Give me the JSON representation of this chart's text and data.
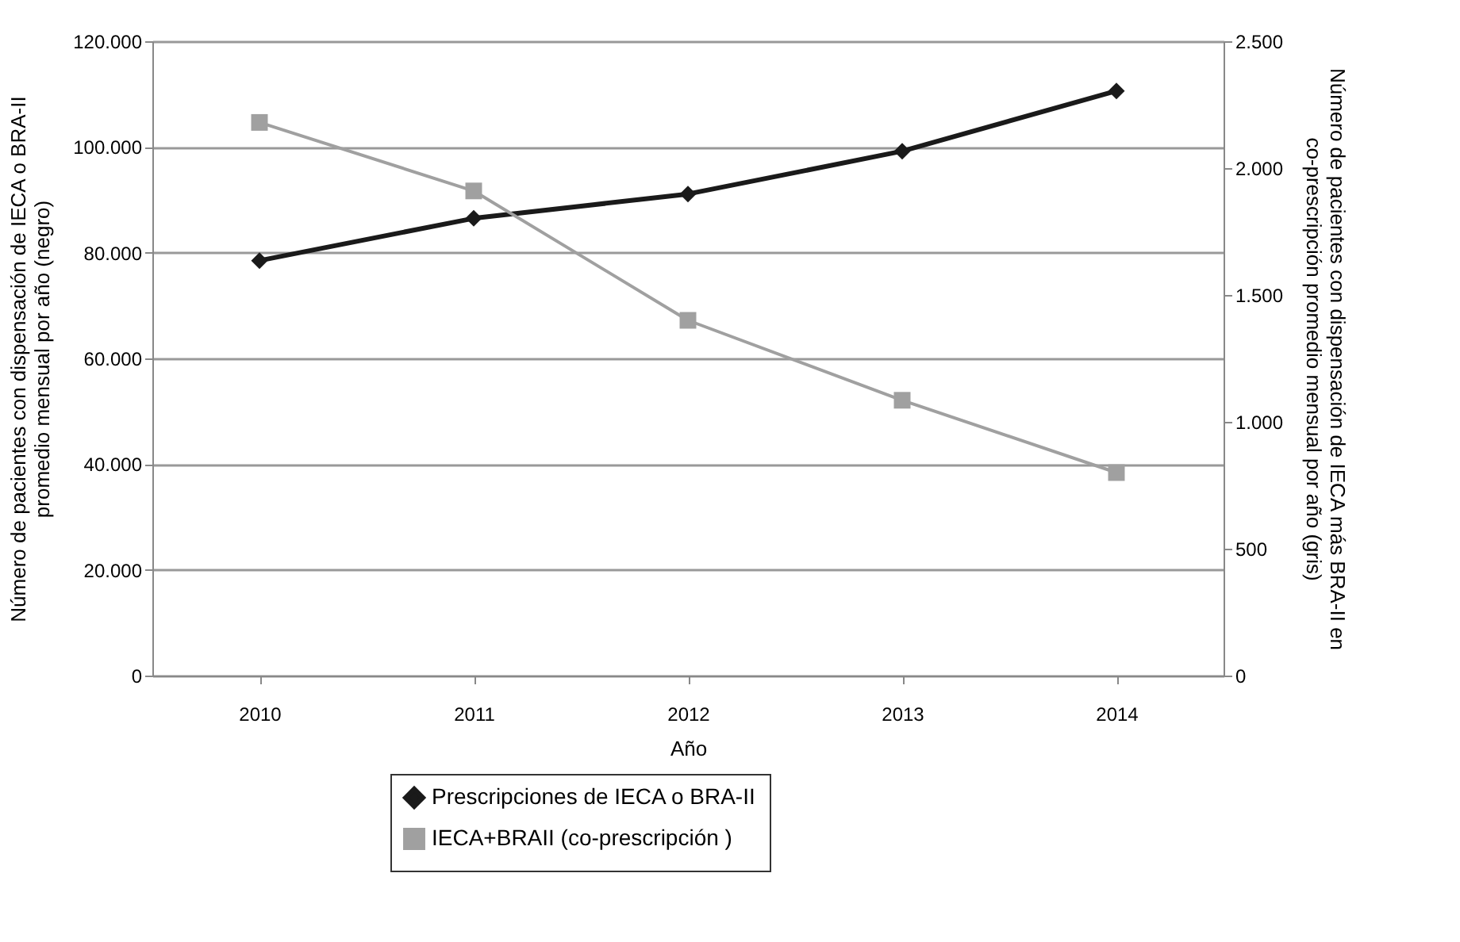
{
  "chart_data": {
    "type": "line",
    "categories": [
      "2010",
      "2011",
      "2012",
      "2013",
      "2014"
    ],
    "xlabel": "Año",
    "ylabel": "Número de pacientes con dispensación de IECA o BRA-II\npromedio mensual por año (negro)",
    "y2label": "Número de pacientes con dispensación de IECA más BRA-II en\nco-prescripción promedio mensual por año (gris)",
    "series": [
      {
        "name": "Prescripciones de IECA o BRA-II",
        "color": "#1a1a1a",
        "marker": "diamond",
        "values": [
          78500,
          86500,
          91100,
          99200,
          110600
        ]
      },
      {
        "name": "IECA+BRAII (co-prescripción )",
        "color": "#a0a0a0",
        "marker": "square",
        "axis": "y2",
        "values": [
          2180,
          1910,
          1400,
          1085,
          800
        ]
      }
    ],
    "ylim": [
      0,
      120000
    ],
    "yticks": [
      0,
      {
        "value": 20000,
        "label": "20.000"
      },
      {
        "value": 40000,
        "label": "40.000"
      },
      {
        "value": 60000,
        "label": "60.000"
      },
      {
        "value": 80000,
        "label": "80.000"
      },
      {
        "value": 100000,
        "label": "100.000"
      },
      {
        "value": 120000,
        "label": "120.000"
      }
    ],
    "y2lim": [
      0,
      2500
    ],
    "y2ticks": [
      0,
      500,
      {
        "value": 1000,
        "label": "1.000"
      },
      {
        "value": 1500,
        "label": "1.500"
      },
      {
        "value": 2000,
        "label": "2.000"
      },
      {
        "value": 2500,
        "label": "2.500"
      }
    ],
    "grid": "y",
    "legend": "bottom"
  }
}
